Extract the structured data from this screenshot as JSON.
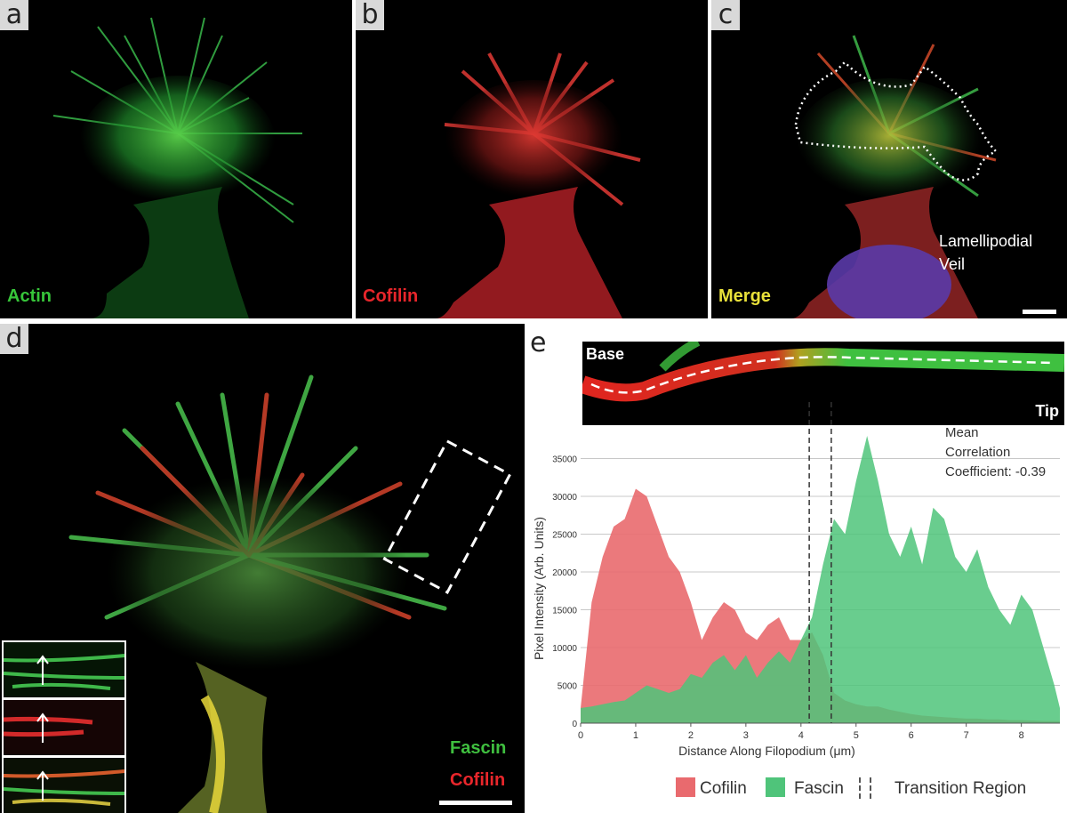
{
  "panels": {
    "a": {
      "label": "a",
      "channel": "Actin",
      "color": "#37c53a"
    },
    "b": {
      "label": "b",
      "channel": "Cofilin",
      "color": "#e8262b"
    },
    "c": {
      "label": "c",
      "channel": "Merge",
      "color": "#e9e13a",
      "annotation_line1": "Lamellipodial",
      "annotation_line2": "Veil"
    },
    "d": {
      "label": "d",
      "channel1": "Fascin",
      "channel1_color": "#3fbf3f",
      "channel2": "Cofilin",
      "channel2_color": "#e8262b"
    },
    "e": {
      "label": "e",
      "base": "Base",
      "tip": "Tip",
      "corr_line1": "Mean",
      "corr_line2": "Correlation",
      "corr_line3": "Coefficient: -0.39"
    }
  },
  "legend": {
    "cofilin": "Cofilin",
    "fascin": "Fascin",
    "transition": "Transition Region"
  },
  "chart_data": {
    "type": "area",
    "xlabel": "Distance Along Filopodium (μm)",
    "ylabel": "Pixel Intensity (Arb. Units)",
    "xlim": [
      0,
      8.7
    ],
    "ylim": [
      0,
      38000
    ],
    "xticks": [
      "0",
      "1",
      "2",
      "3",
      "4",
      "5",
      "6",
      "7",
      "8"
    ],
    "yticks": [
      "0",
      "5000",
      "10000",
      "15000",
      "20000",
      "25000",
      "30000",
      "35000"
    ],
    "grid": true,
    "transition_region": [
      4.15,
      4.55
    ],
    "x": [
      0,
      0.2,
      0.4,
      0.6,
      0.8,
      1.0,
      1.2,
      1.4,
      1.6,
      1.8,
      2.0,
      2.2,
      2.4,
      2.6,
      2.8,
      3.0,
      3.2,
      3.4,
      3.6,
      3.8,
      4.0,
      4.2,
      4.4,
      4.6,
      4.8,
      5.0,
      5.2,
      5.4,
      5.6,
      5.8,
      6.0,
      6.2,
      6.4,
      6.6,
      6.8,
      7.0,
      7.2,
      7.4,
      7.6,
      7.8,
      8.0,
      8.2,
      8.4,
      8.6,
      8.7
    ],
    "series": [
      {
        "name": "Cofilin",
        "color": "#e96a6e",
        "values": [
          2000,
          16000,
          22000,
          26000,
          27000,
          31000,
          30000,
          26000,
          22000,
          20000,
          16000,
          11000,
          14000,
          16000,
          15000,
          12000,
          11000,
          13000,
          14000,
          11000,
          11000,
          12000,
          9000,
          4000,
          3000,
          2500,
          2200,
          2200,
          1800,
          1500,
          1200,
          1000,
          900,
          800,
          700,
          600,
          600,
          500,
          500,
          400,
          400,
          350,
          300,
          300,
          300
        ]
      },
      {
        "name": "Fascin",
        "color": "#4fc47a",
        "values": [
          2000,
          2200,
          2500,
          2800,
          3000,
          4000,
          5000,
          4500,
          4000,
          4500,
          6500,
          6000,
          8000,
          9000,
          7000,
          9000,
          6000,
          8000,
          9500,
          8000,
          11000,
          14000,
          21000,
          27000,
          25000,
          32000,
          38000,
          32000,
          25000,
          22000,
          26000,
          21000,
          28500,
          27000,
          22000,
          20000,
          23000,
          18000,
          15000,
          13000,
          17000,
          15000,
          10000,
          5000,
          2000
        ]
      }
    ]
  }
}
